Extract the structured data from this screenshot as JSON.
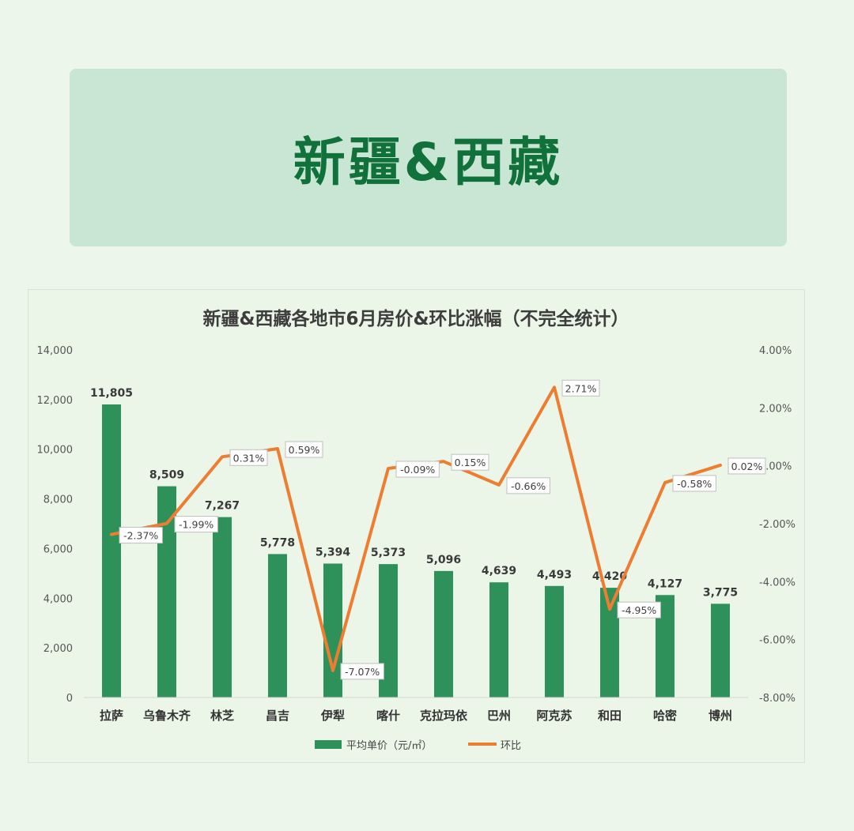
{
  "banner": {
    "title": "新疆&西藏"
  },
  "chart_data": {
    "type": "bar",
    "title": "新疆&西藏各地市6月房价&环比涨幅（不完全统计）",
    "categories": [
      "拉萨",
      "乌鲁木齐",
      "林芝",
      "昌吉",
      "伊犁",
      "喀什",
      "克拉玛依",
      "巴州",
      "阿克苏",
      "和田",
      "哈密",
      "博州"
    ],
    "series": [
      {
        "name": "平均单价（元/㎡）",
        "type": "bar",
        "axis": "left",
        "color": "#2e9159",
        "values": [
          11805,
          8509,
          7267,
          5778,
          5394,
          5373,
          5096,
          4639,
          4493,
          4420,
          4127,
          3775
        ],
        "labels": [
          "11,805",
          "8,509",
          "7,267",
          "5,778",
          "5,394",
          "5,373",
          "5,096",
          "4,639",
          "4,493",
          "4,420",
          "4,127",
          "3,775"
        ]
      },
      {
        "name": "环比",
        "type": "line",
        "axis": "right",
        "color": "#ed7d31",
        "values": [
          -2.37,
          -1.99,
          0.31,
          0.59,
          -7.07,
          -0.09,
          0.15,
          -0.66,
          2.71,
          -4.95,
          -0.58,
          0.02
        ],
        "labels": [
          "-2.37%",
          "-1.99%",
          "0.31%",
          "0.59%",
          "-7.07%",
          "-0.09%",
          "0.15%",
          "-0.66%",
          "2.71%",
          "-4.95%",
          "-0.58%",
          "0.02%"
        ]
      }
    ],
    "y_left": {
      "min": 0,
      "max": 14000,
      "ticks": [
        "0",
        "2,000",
        "4,000",
        "6,000",
        "8,000",
        "10,000",
        "12,000",
        "14,000"
      ]
    },
    "y_right": {
      "min": -8,
      "max": 4,
      "ticks": [
        "-8.00%",
        "-6.00%",
        "-4.00%",
        "-2.00%",
        "0.00%",
        "2.00%",
        "4.00%"
      ]
    },
    "grid": false,
    "legend_position": "bottom"
  }
}
